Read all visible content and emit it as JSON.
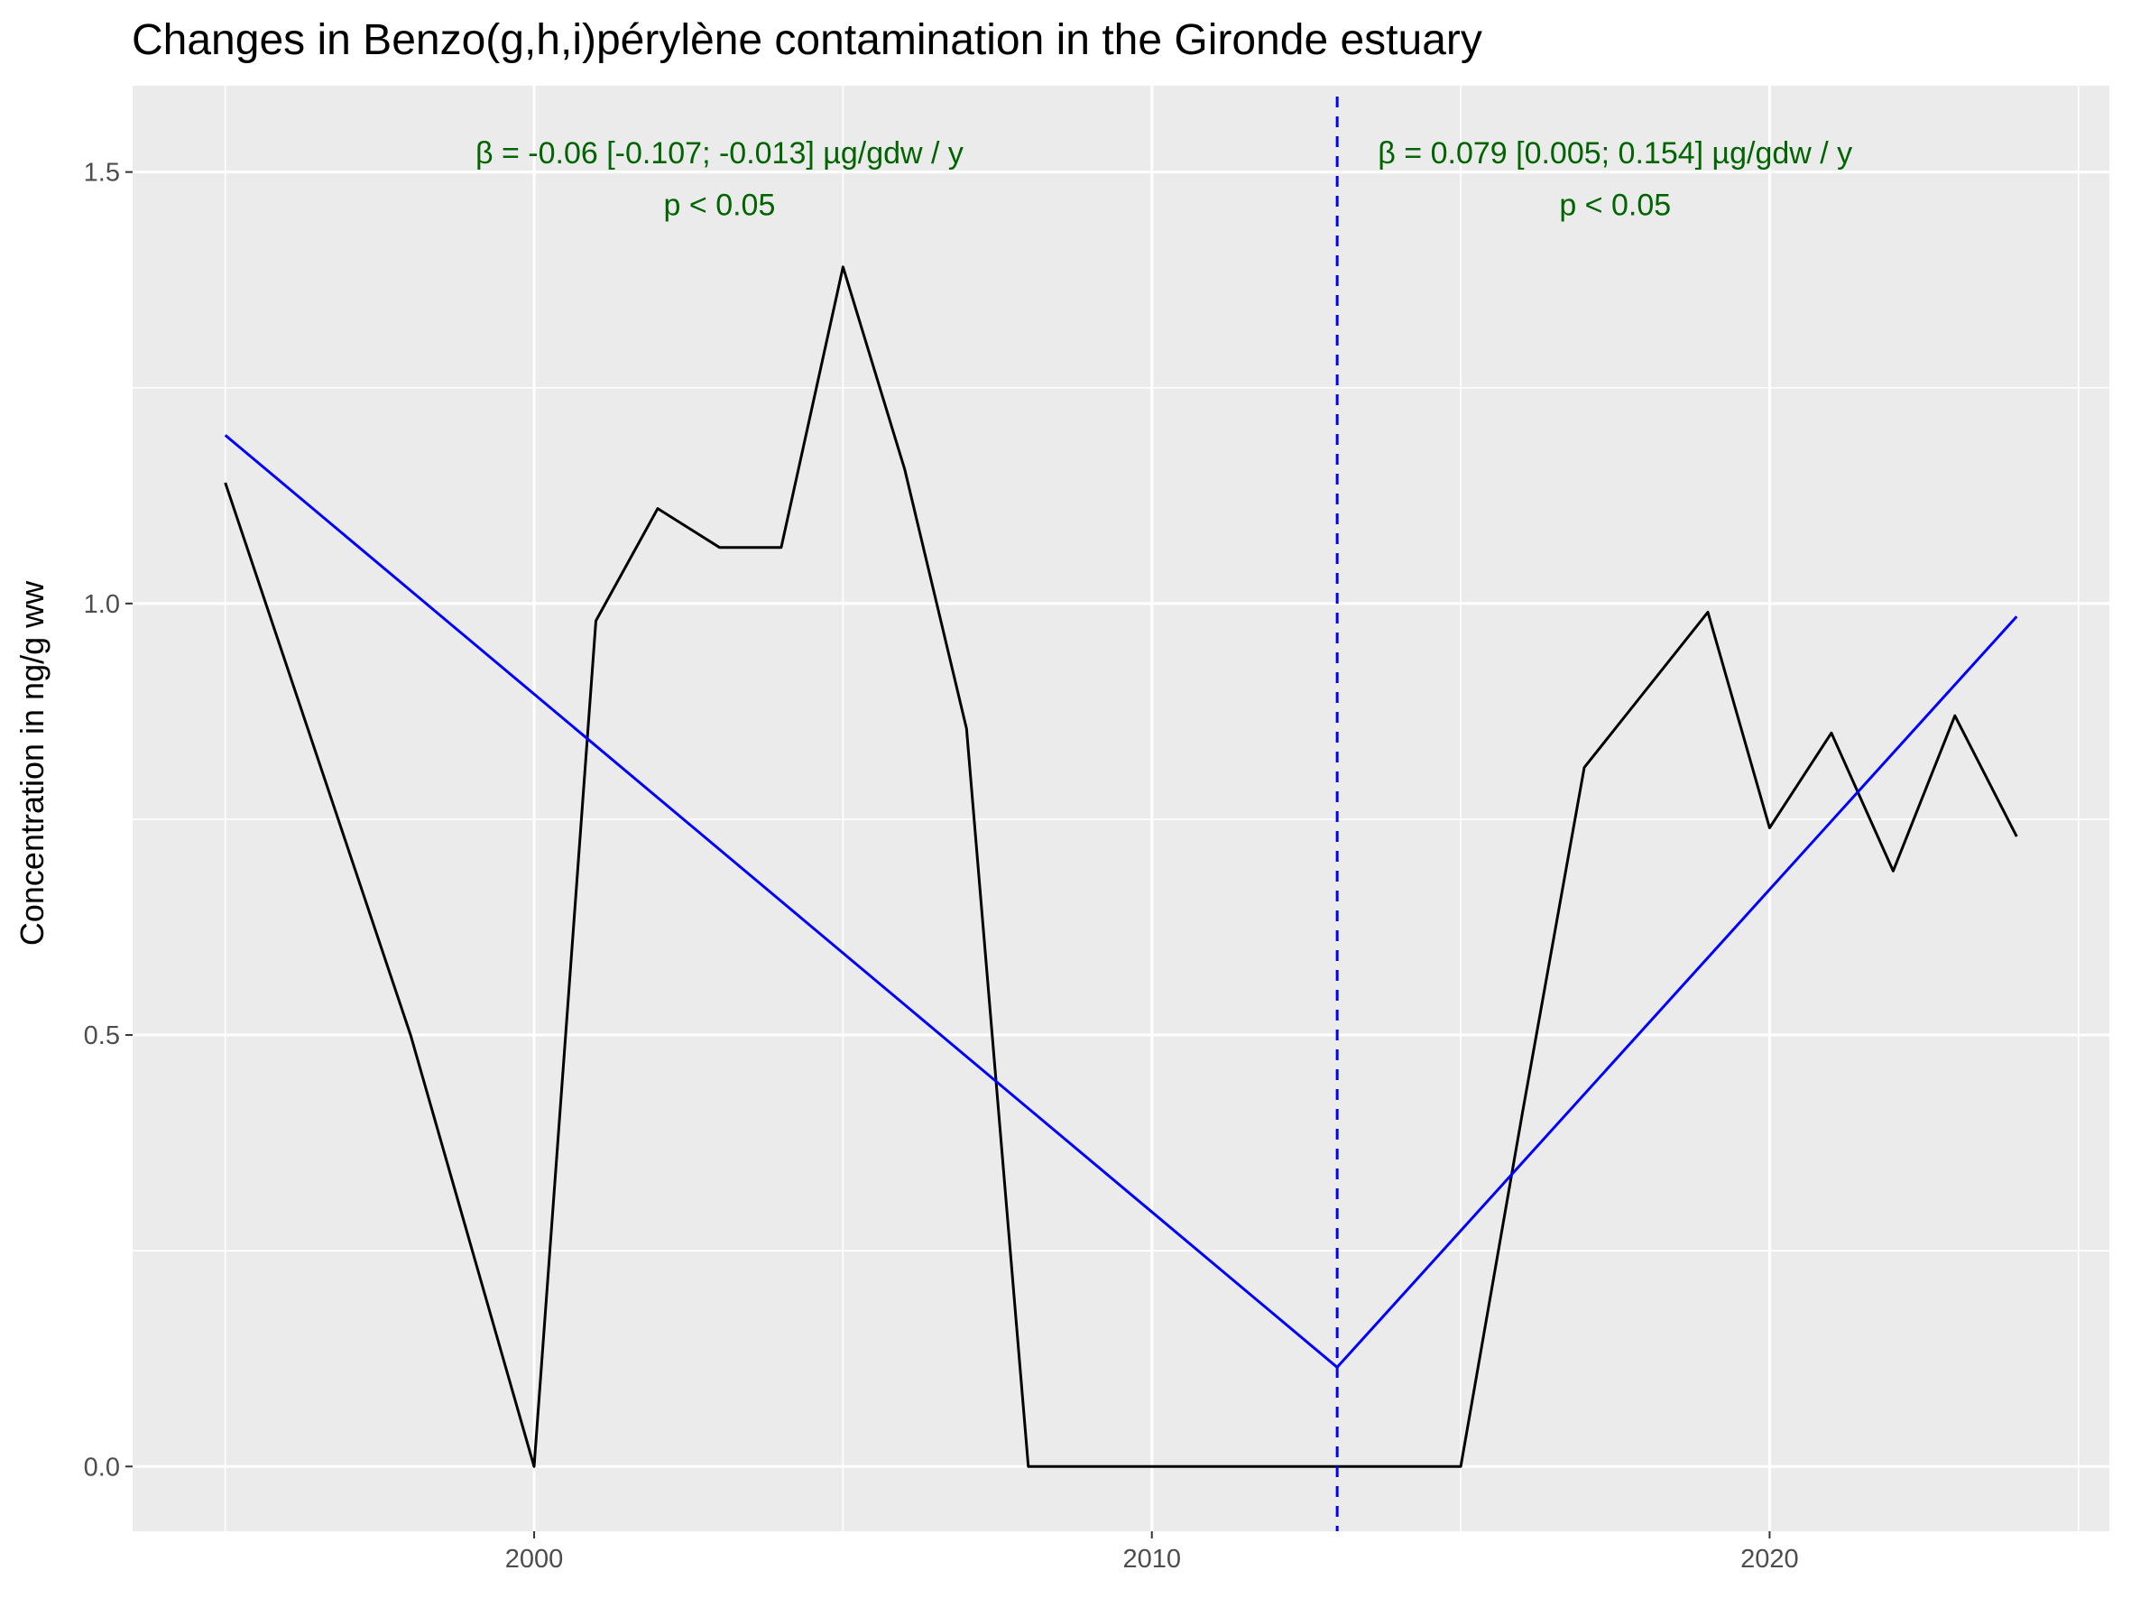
{
  "chart_data": {
    "type": "line",
    "title": "Changes in Benzo(g,h,i)pérylène contamination in the Gironde estuary",
    "xlabel": "",
    "ylabel": "Concentration in ng/g ww",
    "xlim": [
      1993.5,
      2025.5
    ],
    "ylim": [
      -0.075,
      1.6
    ],
    "x_ticks": [
      2000,
      2010,
      2020
    ],
    "y_ticks": [
      0.0,
      0.5,
      1.0,
      1.5
    ],
    "y_tick_labels": [
      "0.0",
      "0.5",
      "1.0",
      "1.5"
    ],
    "grid": true,
    "series": [
      {
        "color": "#000000",
        "x": [
          1995,
          1998,
          2000,
          2001,
          2002,
          2003,
          2004,
          2005,
          2006,
          2007,
          2008,
          2009,
          2010,
          2011,
          2012,
          2013,
          2014,
          2015,
          2016,
          2017,
          2018,
          2019,
          2020,
          2021,
          2022,
          2023,
          2024
        ],
        "y": [
          1.14,
          0.5,
          0.0,
          0.98,
          1.11,
          1.065,
          1.065,
          1.39,
          1.155,
          0.855,
          0.0,
          0.0,
          0.0,
          0.0,
          0.0,
          0.0,
          0.0,
          0.0,
          0.41,
          0.81,
          0.9,
          0.99,
          0.74,
          0.85,
          0.69,
          0.87,
          0.73
        ]
      },
      {
        "color": "#0000ff",
        "x": [
          1995,
          2013,
          2024
        ],
        "y": [
          1.195,
          0.115,
          0.985
        ]
      }
    ],
    "breakpoint": {
      "x": 2013,
      "color": "#0000ff",
      "style": "dashed"
    },
    "annotations": [
      {
        "x": 2003.0,
        "y": 1.51,
        "text": "β = -0.06 [-0.107; -0.013] µg/gdw / y",
        "color": "#006400"
      },
      {
        "x": 2003.0,
        "y": 1.45,
        "text": "p < 0.05",
        "color": "#006400"
      },
      {
        "x": 2017.5,
        "y": 1.51,
        "text": "β = 0.079 [0.005; 0.154] µg/gdw / y",
        "color": "#006400"
      },
      {
        "x": 2017.5,
        "y": 1.45,
        "text": "p < 0.05",
        "color": "#006400"
      }
    ],
    "colors": {
      "panel_bg": "#ebebeb",
      "grid": "#ffffff",
      "tick_text": "#4d4d4d"
    }
  }
}
